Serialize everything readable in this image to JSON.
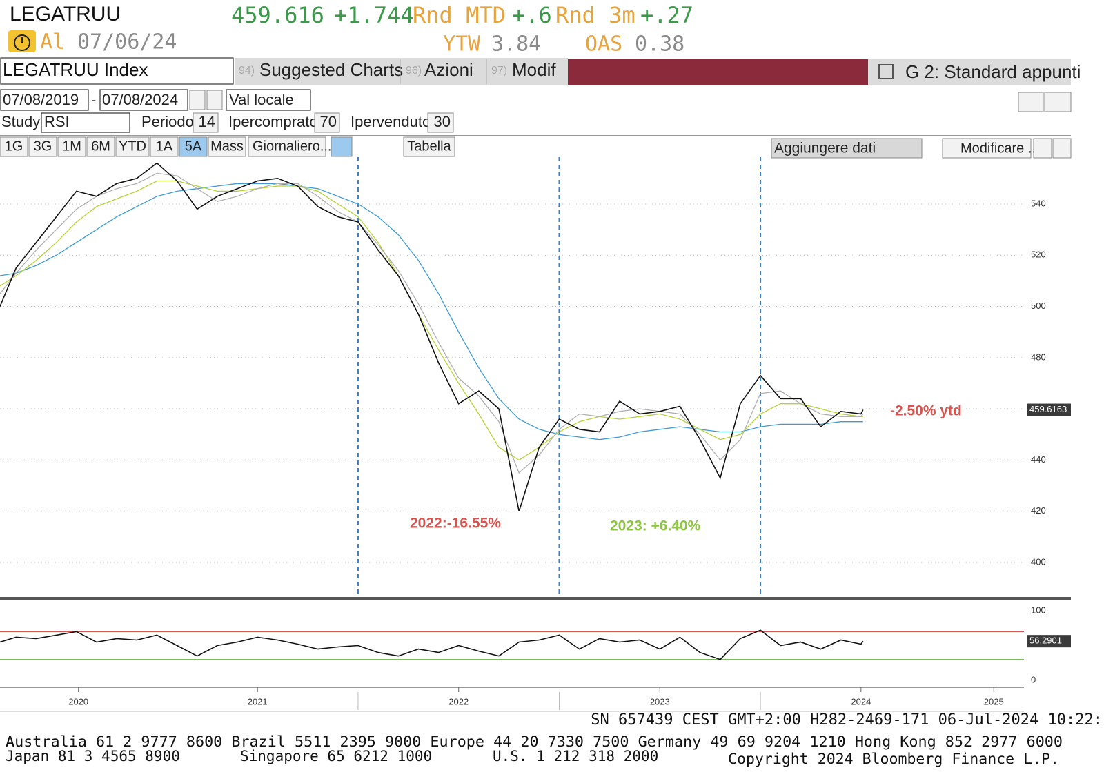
{
  "header": {
    "ticker": "LEGATRUU",
    "price": "459.616",
    "change": "+1.744",
    "mtd_label": "Rnd MTD",
    "mtd": "+.6",
    "m3_label": "Rnd 3m",
    "m3": "+.27",
    "rating": "Al",
    "date": "07/06/24",
    "ytw_label": "YTW",
    "ytw": "3.84",
    "oas_label": "OAS",
    "oas": "0.38"
  },
  "toolbar": {
    "security": "LEGATRUU Index",
    "menu": [
      {
        "num": "94)",
        "label": "Suggested Charts"
      },
      {
        "num": "96)",
        "label": "Azioni"
      },
      {
        "num": "97)",
        "label": "Modif"
      }
    ],
    "template": "G 2: Standard appunti",
    "start_date": "07/08/2019",
    "end_date": "07/08/2024",
    "currency": "Val locale",
    "study_label": "Study",
    "study": "RSI",
    "period_label": "Periodo",
    "period": 14,
    "overbought_label": "Ipercomprato",
    "overbought": 70,
    "oversold_label": "Ipervenduto",
    "oversold": 30,
    "ranges": [
      "1G",
      "3G",
      "1M",
      "6M",
      "YTD",
      "1A",
      "5A"
    ],
    "active_range": "5A",
    "mass": "Mass",
    "frequency": "Giornaliero...",
    "table": "Tabella",
    "add_data": "Aggiungere dati",
    "edit": "Modificare ..."
  },
  "chart_data": [
    {
      "type": "line",
      "x": [
        2020.22,
        2020.3,
        2020.4,
        2020.5,
        2020.6,
        2020.7,
        2020.8,
        2020.9,
        2021.0,
        2021.1,
        2021.2,
        2021.3,
        2021.4,
        2021.5,
        2021.6,
        2021.7,
        2021.8,
        2021.9,
        2022.0,
        2022.1,
        2022.2,
        2022.3,
        2022.4,
        2022.5,
        2022.6,
        2022.7,
        2022.8,
        2022.9,
        2023.0,
        2023.1,
        2023.2,
        2023.3,
        2023.4,
        2023.5,
        2023.6,
        2023.7,
        2023.8,
        2023.9,
        2024.0,
        2024.1,
        2024.2,
        2024.3,
        2024.4,
        2024.5,
        2024.51
      ],
      "series": [
        {
          "color": "#3c9bd6",
          "values": [
            512,
            513,
            516,
            520,
            525,
            530,
            535,
            539,
            543,
            545,
            546,
            547,
            548,
            548,
            548,
            547,
            546,
            543,
            540,
            535,
            528,
            518,
            505,
            490,
            476,
            464,
            456,
            452,
            450,
            449,
            448,
            449,
            451,
            452,
            453,
            452,
            451,
            451,
            453,
            454,
            454,
            454,
            455,
            455,
            455
          ]
        },
        {
          "color": "#b5d334",
          "values": [
            508,
            512,
            518,
            525,
            533,
            539,
            542,
            545,
            549,
            549,
            547,
            545,
            545,
            546,
            547,
            547,
            545,
            540,
            535,
            525,
            512,
            497,
            483,
            470,
            458,
            445,
            440,
            445,
            451,
            455,
            457,
            456,
            457,
            458,
            456,
            452,
            448,
            450,
            458,
            462,
            462,
            460,
            458,
            457,
            457
          ]
        },
        {
          "color": "#b0b0b0",
          "values": [
            505,
            513,
            522,
            530,
            538,
            543,
            546,
            548,
            552,
            551,
            546,
            541,
            543,
            546,
            548,
            548,
            543,
            537,
            533,
            524,
            514,
            501,
            486,
            472,
            465,
            455,
            435,
            442,
            452,
            458,
            457,
            459,
            460,
            459,
            458,
            450,
            440,
            448,
            466,
            467,
            462,
            458,
            457,
            457,
            458
          ]
        },
        {
          "color": "#111111",
          "values": [
            500,
            515,
            525,
            535,
            545,
            543,
            548,
            550,
            556,
            549,
            538,
            543,
            546,
            549,
            550,
            547,
            539,
            535,
            533,
            522,
            512,
            497,
            478,
            462,
            467,
            460,
            420,
            445,
            456,
            452,
            451,
            463,
            458,
            459,
            461,
            448,
            433,
            462,
            473,
            464,
            464,
            453,
            459,
            458,
            459.6163
          ]
        }
      ],
      "xlim": [
        2020.22,
        2025.31
      ],
      "xticks": [
        {
          "value": 2020.61,
          "label": "2020"
        },
        {
          "value": 2021.5,
          "label": "2021"
        },
        {
          "value": 2022.5,
          "label": "2022"
        },
        {
          "value": 2023.5,
          "label": "2023"
        },
        {
          "value": 2024.5,
          "label": "2024"
        },
        {
          "value": 2025.16,
          "label": "2025"
        }
      ],
      "ylim": [
        386.8,
        558.3
      ],
      "yticks": [
        400,
        420,
        440,
        460,
        480,
        500,
        520,
        540
      ],
      "grid": true,
      "year_lines": [
        2022,
        2023,
        2024
      ],
      "year_line_color": "#3c7fc4",
      "annotations": [
        {
          "text": "2022:-16.55%",
          "color": "#d9534f"
        },
        {
          "text": "2023: +6.40%",
          "color": "#8cc63f"
        },
        {
          "text": "-2.50% ytd",
          "color": "#d9534f"
        }
      ]
    },
    {
      "type": "line",
      "series": [
        {
          "color": "#111111",
          "values": [
            55,
            62,
            60,
            65,
            70,
            55,
            60,
            58,
            65,
            50,
            35,
            50,
            55,
            62,
            58,
            52,
            45,
            48,
            50,
            40,
            35,
            45,
            40,
            50,
            42,
            35,
            55,
            58,
            65,
            45,
            60,
            55,
            58,
            45,
            62,
            40,
            30,
            60,
            72,
            50,
            55,
            45,
            58,
            52,
            56.2901
          ]
        }
      ],
      "ylim": [
        -7.9,
        113.9
      ],
      "yticks": [
        0,
        100
      ],
      "overbought_color": "#d9534f",
      "oversold_color": "#6ab04c"
    }
  ],
  "footer": {
    "session": "SN 657439 CEST GMT+2:00 H282-2469-171 06-Jul-2024 10:22:",
    "contacts": [
      "Australia 61 2 9777 8600 Brazil 5511 2395 9000 Europe 44 20 7330 7500 Germany 49 69 9204 1210 Hong Kong 852 2977 6000",
      "Japan 81 3 4565 8900",
      "Singapore 65 6212 1000",
      "U.S. 1 212 318 2000",
      "Copyright 2024 Bloomberg Finance L.P."
    ]
  }
}
